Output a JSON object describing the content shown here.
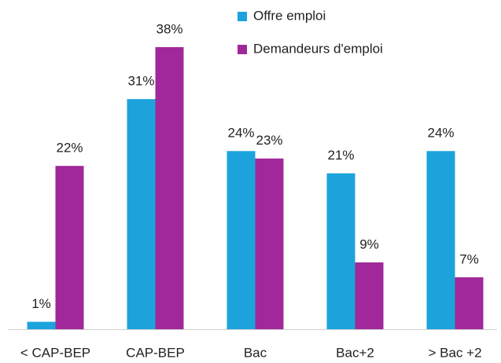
{
  "chart_data": {
    "type": "bar",
    "categories": [
      "< CAP-BEP",
      "CAP-BEP",
      "Bac",
      "Bac+2",
      "> Bac +2"
    ],
    "series": [
      {
        "name": "Offre emploi",
        "color": "#1ca3dc",
        "values": [
          1,
          31,
          24,
          21,
          24
        ],
        "value_labels": [
          "1%",
          "31%",
          "24%",
          "21%",
          "24%"
        ]
      },
      {
        "name": "Demandeurs d'emploi",
        "color": "#a0289a",
        "values": [
          22,
          38,
          23,
          9,
          7
        ],
        "value_labels": [
          "22%",
          "38%",
          "23%",
          "9%",
          "7%"
        ]
      }
    ],
    "legend": "top-right"
  }
}
